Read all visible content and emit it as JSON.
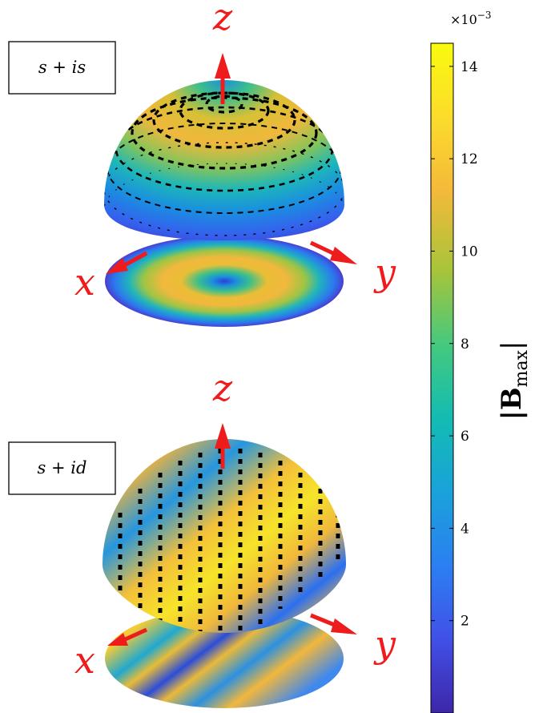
{
  "panels": [
    {
      "case_label": "s + is",
      "axes": {
        "x": "x",
        "y": "y",
        "z": "z"
      }
    },
    {
      "case_label": "s + id",
      "axes": {
        "x": "x",
        "y": "y",
        "z": "z"
      }
    }
  ],
  "colorbar": {
    "title_symbol": "|B",
    "title_subscript": "max",
    "title_close": "|",
    "multiplier_base": "×10",
    "multiplier_exponent": "−3",
    "min": 0,
    "max": 14.5,
    "ticks": [
      2,
      4,
      6,
      8,
      10,
      12,
      14
    ],
    "tick_labels": [
      "2",
      "4",
      "6",
      "8",
      "10",
      "12",
      "14"
    ],
    "colormap": [
      "#3e26a8",
      "#4150e8",
      "#2b7ff2",
      "#1aa2da",
      "#13bcb2",
      "#45c97e",
      "#a7c43a",
      "#f4b93a",
      "#fcdc2b",
      "#f9fb0e"
    ]
  },
  "colors": {
    "axis_arrow": "#ee1c1c",
    "vector_arrow": "#000000"
  }
}
